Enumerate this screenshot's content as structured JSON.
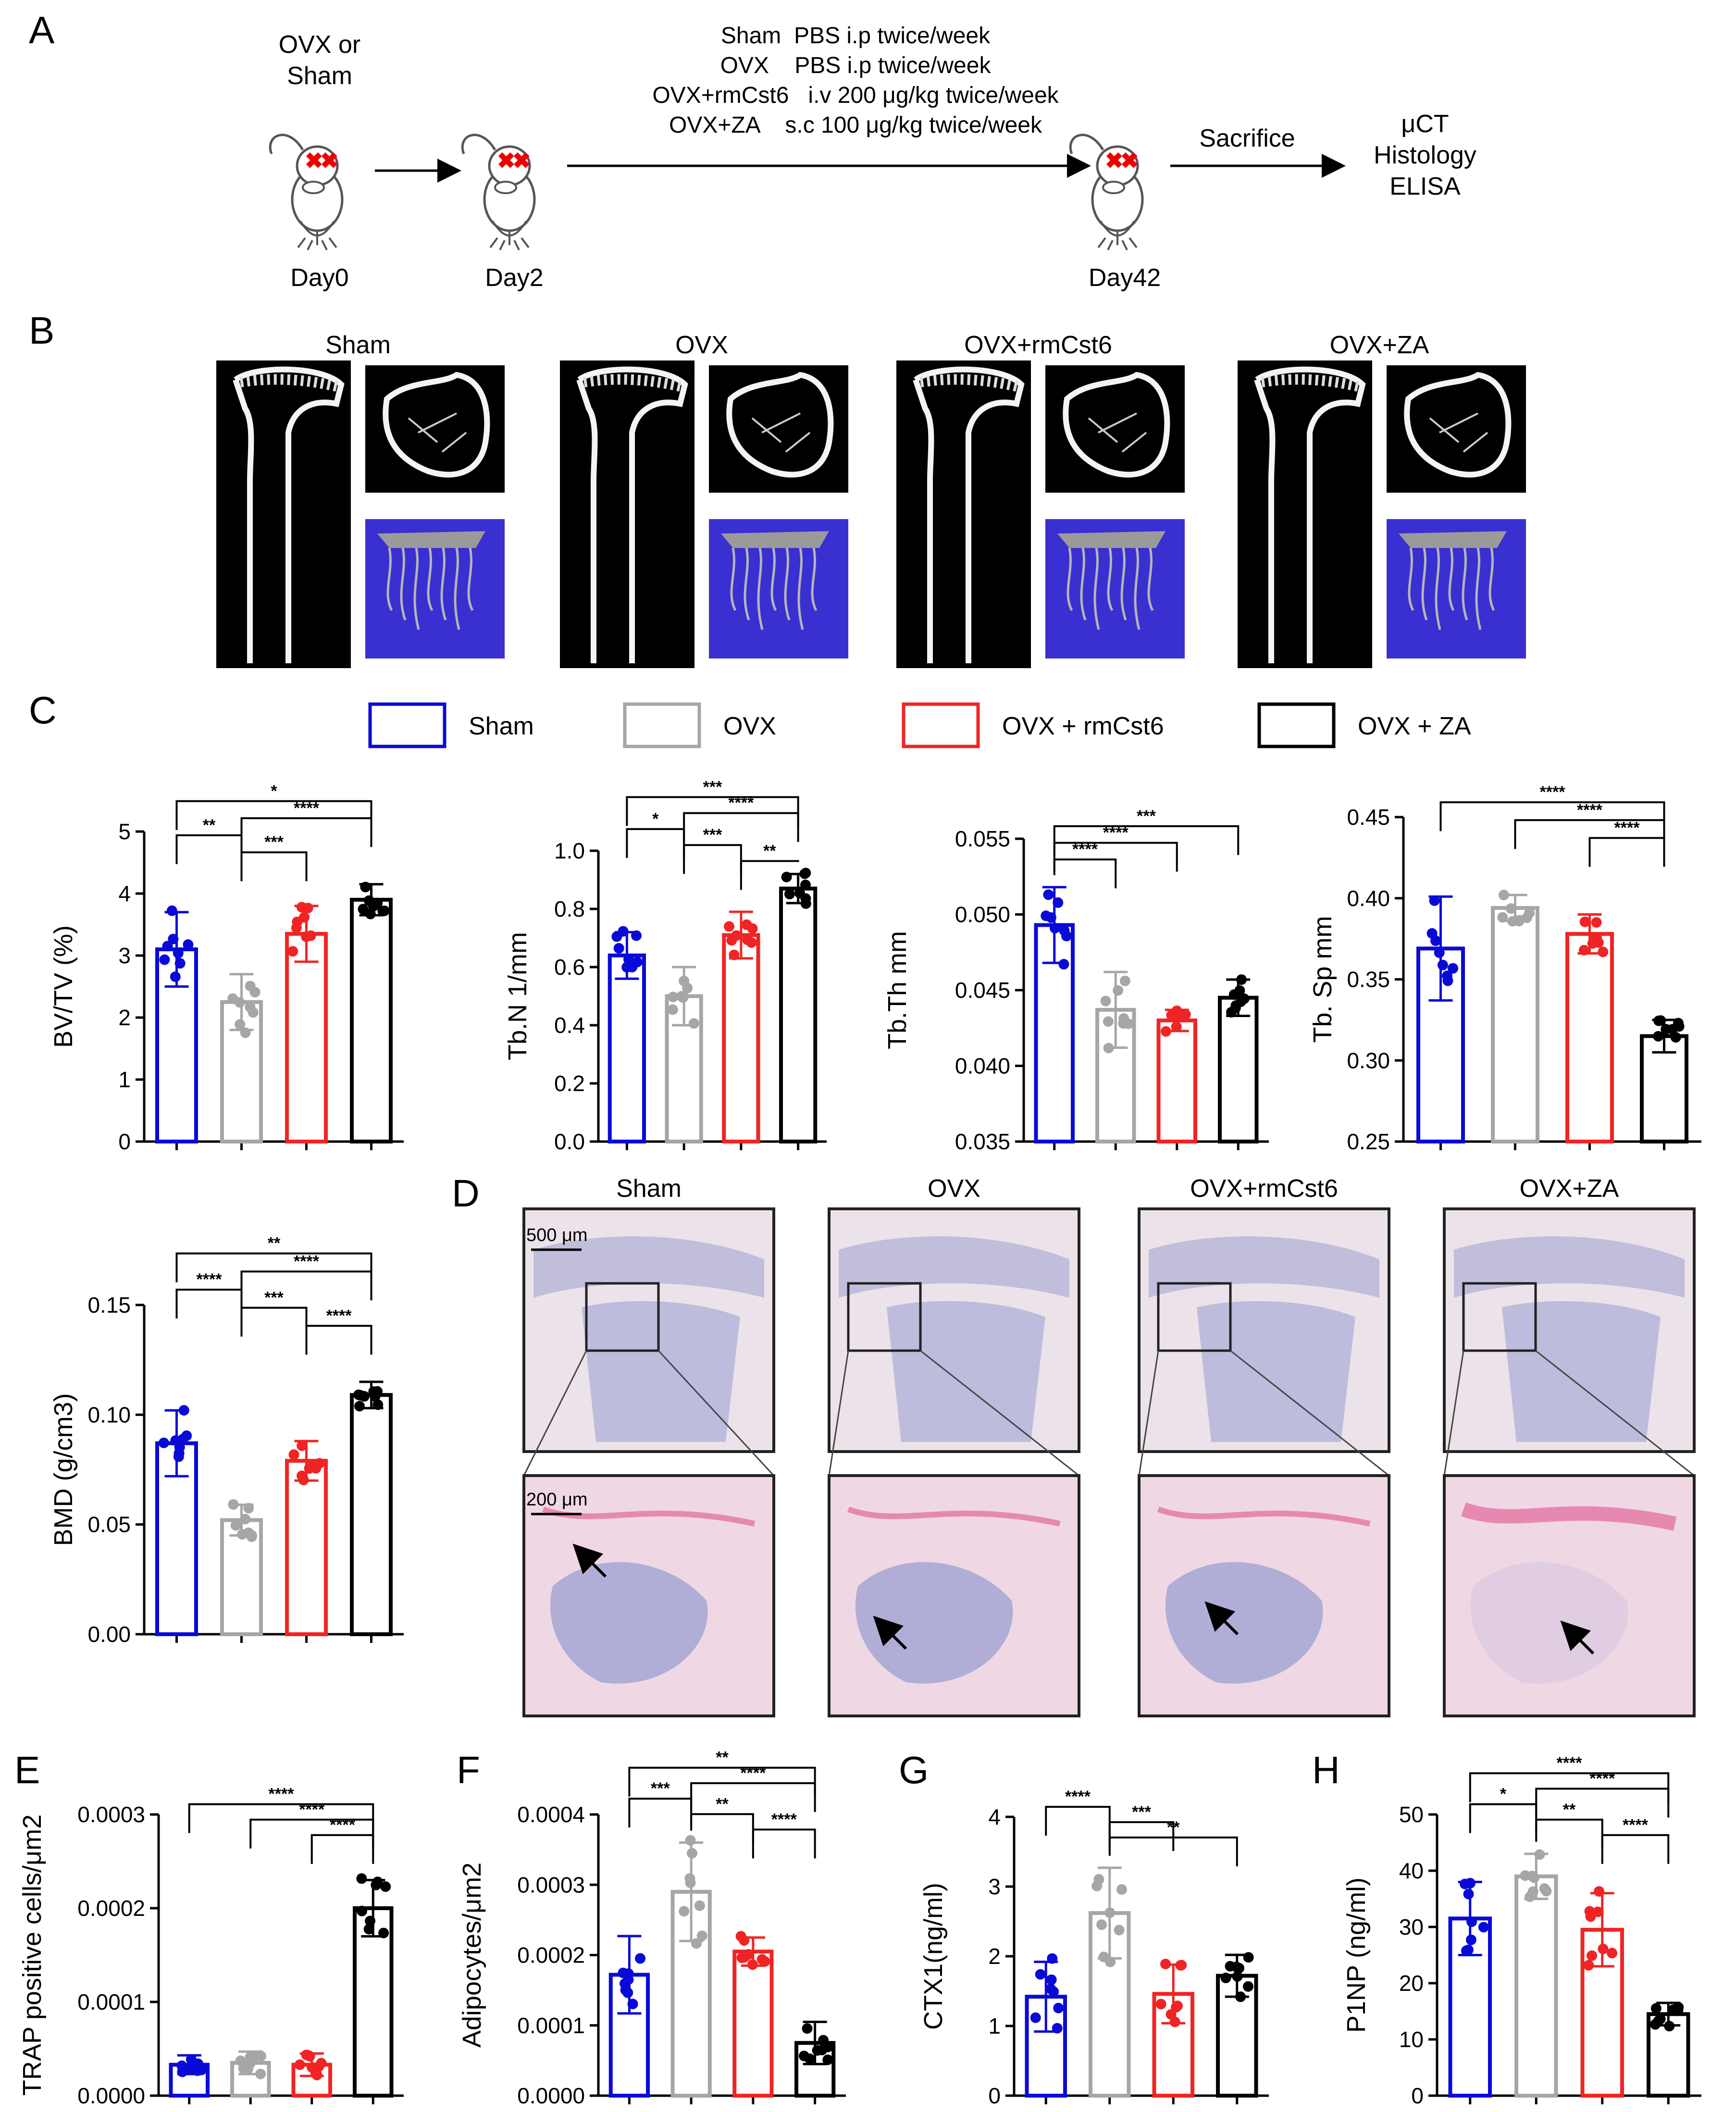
{
  "panel_labels": {
    "A": "A",
    "B": "B",
    "C": "C",
    "D": "D",
    "E": "E",
    "F": "F",
    "G": "G",
    "H": "H"
  },
  "timeline": {
    "start_label": [
      "OVX or",
      "Sham"
    ],
    "days": [
      "Day0",
      "Day2",
      "Day42"
    ],
    "treatments": [
      "Sham  PBS i.p twice/week",
      "OVX    PBS i.p twice/week",
      "OVX+rmCst6   i.v 200 μg/kg twice/week",
      "OVX+ZA    s.c 100 μg/kg twice/week"
    ],
    "sacrifice_label": "Sacrifice",
    "outcomes": [
      "μCT",
      "Histology",
      "ELISA"
    ]
  },
  "microct_titles": [
    "Sham",
    "OVX",
    "OVX+rmCst6",
    "OVX+ZA"
  ],
  "legend": [
    {
      "label": "Sham",
      "color": "#0a0ad8"
    },
    {
      "label": "OVX",
      "color": "#a6a6a6"
    },
    {
      "label": "OVX + rmCst6",
      "color": "#f02424"
    },
    {
      "label": "OVX + ZA",
      "color": "#000000"
    }
  ],
  "histology": {
    "titles": [
      "Sham",
      "OVX",
      "OVX+rmCst6",
      "OVX+ZA"
    ],
    "scale_top": "500 μm",
    "scale_bottom": "200 μm"
  },
  "chart_data": [
    {
      "id": "bvtv",
      "type": "bar",
      "ylabel": "BV/TV (%)",
      "ylim": [
        0,
        5
      ],
      "ticks": [
        "0",
        "1",
        "2",
        "3",
        "4",
        "5"
      ],
      "categories": [
        "Sham",
        "OVX",
        "OVX + rmCst6",
        "OVX + ZA"
      ],
      "values": [
        3.1,
        2.25,
        3.35,
        3.9
      ],
      "errors": [
        0.6,
        0.45,
        0.45,
        0.25
      ],
      "brackets": [
        {
          "a": 0,
          "b": 3,
          "label": "*"
        },
        {
          "a": 1,
          "b": 3,
          "label": "****"
        },
        {
          "a": 0,
          "b": 1,
          "label": "**"
        },
        {
          "a": 1,
          "b": 2,
          "label": "***"
        }
      ]
    },
    {
      "id": "tbn",
      "type": "bar",
      "ylabel": "Tb.N 1/mm",
      "ylim": [
        0,
        1
      ],
      "ticks": [
        "0.0",
        "0.2",
        "0.4",
        "0.6",
        "0.8",
        "1.0"
      ],
      "categories": [
        "Sham",
        "OVX",
        "OVX + rmCst6",
        "OVX + ZA"
      ],
      "values": [
        0.64,
        0.5,
        0.71,
        0.87
      ],
      "errors": [
        0.08,
        0.1,
        0.08,
        0.05
      ],
      "brackets": [
        {
          "a": 0,
          "b": 3,
          "label": "***"
        },
        {
          "a": 1,
          "b": 3,
          "label": "****"
        },
        {
          "a": 0,
          "b": 1,
          "label": "*"
        },
        {
          "a": 1,
          "b": 2,
          "label": "***"
        },
        {
          "a": 2,
          "b": 3,
          "label": "**"
        }
      ]
    },
    {
      "id": "tbth",
      "type": "bar",
      "ylabel": "Tb.Th mm",
      "ylim": [
        0.035,
        0.055
      ],
      "ticks": [
        "0.035",
        "0.040",
        "0.045",
        "0.050",
        "0.055"
      ],
      "categories": [
        "Sham",
        "OVX",
        "OVX + rmCst6",
        "OVX + ZA"
      ],
      "values": [
        0.0493,
        0.0437,
        0.043,
        0.0445
      ],
      "errors": [
        0.0025,
        0.0025,
        0.0007,
        0.0012
      ],
      "brackets": [
        {
          "a": 0,
          "b": 3,
          "label": "***"
        },
        {
          "a": 0,
          "b": 2,
          "label": "****"
        },
        {
          "a": 0,
          "b": 1,
          "label": "****"
        }
      ]
    },
    {
      "id": "tbsp",
      "type": "bar",
      "ylabel": "Tb. Sp mm",
      "ylim": [
        0.25,
        0.45
      ],
      "ticks": [
        "0.25",
        "0.30",
        "0.35",
        "0.40",
        "0.45"
      ],
      "categories": [
        "Sham",
        "OVX",
        "OVX + rmCst6",
        "OVX + ZA"
      ],
      "values": [
        0.369,
        0.394,
        0.378,
        0.315
      ],
      "errors": [
        0.032,
        0.008,
        0.012,
        0.01
      ],
      "brackets": [
        {
          "a": 0,
          "b": 3,
          "label": "****"
        },
        {
          "a": 1,
          "b": 3,
          "label": "****"
        },
        {
          "a": 2,
          "b": 3,
          "label": "****"
        }
      ]
    },
    {
      "id": "bmd",
      "type": "bar",
      "ylabel": "BMD (g/cm3)",
      "ylim": [
        0,
        0.15
      ],
      "ticks": [
        "0.00",
        "0.05",
        "0.10",
        "0.15"
      ],
      "categories": [
        "Sham",
        "OVX",
        "OVX + rmCst6",
        "OVX + ZA"
      ],
      "values": [
        0.087,
        0.052,
        0.079,
        0.109
      ],
      "errors": [
        0.015,
        0.007,
        0.009,
        0.006
      ],
      "brackets": [
        {
          "a": 0,
          "b": 3,
          "label": "**"
        },
        {
          "a": 1,
          "b": 3,
          "label": "****"
        },
        {
          "a": 0,
          "b": 1,
          "label": "****"
        },
        {
          "a": 1,
          "b": 2,
          "label": "***"
        },
        {
          "a": 2,
          "b": 3,
          "label": "****"
        }
      ]
    },
    {
      "id": "trap",
      "type": "bar",
      "ylabel": "TRAP positive cells/μm2",
      "ylim": [
        0,
        0.0003
      ],
      "ticks": [
        "0.0000",
        "0.0001",
        "0.0002",
        "0.0003"
      ],
      "categories": [
        "Sham",
        "OVX",
        "OVX + rmCst6",
        "OVX + ZA"
      ],
      "values": [
        3.3e-05,
        3.5e-05,
        3.3e-05,
        0.0002
      ],
      "errors": [
        1e-05,
        1.2e-05,
        1.2e-05,
        3e-05
      ],
      "brackets": [
        {
          "a": 0,
          "b": 3,
          "label": "****"
        },
        {
          "a": 1,
          "b": 3,
          "label": "****"
        },
        {
          "a": 2,
          "b": 3,
          "label": "****"
        }
      ]
    },
    {
      "id": "adipo",
      "type": "bar",
      "ylabel": "Adipocytes/μm2",
      "ylim": [
        0,
        0.0004
      ],
      "ticks": [
        "0.0000",
        "0.0001",
        "0.0002",
        "0.0003",
        "0.0004"
      ],
      "categories": [
        "Sham",
        "OVX",
        "OVX + rmCst6",
        "OVX + ZA"
      ],
      "values": [
        0.000172,
        0.00029,
        0.000205,
        7.5e-05
      ],
      "errors": [
        5.5e-05,
        7e-05,
        2e-05,
        3e-05
      ],
      "brackets": [
        {
          "a": 0,
          "b": 3,
          "label": "**"
        },
        {
          "a": 1,
          "b": 3,
          "label": "****"
        },
        {
          "a": 0,
          "b": 1,
          "label": "***"
        },
        {
          "a": 1,
          "b": 2,
          "label": "**"
        },
        {
          "a": 2,
          "b": 3,
          "label": "****"
        }
      ]
    },
    {
      "id": "ctx1",
      "type": "bar",
      "ylabel": "CTX1(ng/ml)",
      "ylim": [
        0,
        4
      ],
      "ticks": [
        "0",
        "1",
        "2",
        "3",
        "4"
      ],
      "categories": [
        "Sham",
        "OVX",
        "OVX + rmCst6",
        "OVX + ZA"
      ],
      "values": [
        1.42,
        2.62,
        1.46,
        1.72
      ],
      "errors": [
        0.5,
        0.65,
        0.42,
        0.3
      ],
      "brackets": [
        {
          "a": 0,
          "b": 1,
          "label": "****"
        },
        {
          "a": 1,
          "b": 2,
          "label": "***"
        },
        {
          "a": 1,
          "b": 3,
          "label": "**"
        }
      ]
    },
    {
      "id": "p1np",
      "type": "bar",
      "ylabel": "P1NP (ng/ml)",
      "ylim": [
        0,
        50
      ],
      "ticks": [
        "0",
        "10",
        "20",
        "30",
        "40",
        "50"
      ],
      "categories": [
        "Sham",
        "OVX",
        "OVX + rmCst6",
        "OVX + ZA"
      ],
      "values": [
        31.5,
        39,
        29.5,
        14.5
      ],
      "errors": [
        6.5,
        4,
        6.5,
        2
      ],
      "brackets": [
        {
          "a": 0,
          "b": 3,
          "label": "****"
        },
        {
          "a": 1,
          "b": 3,
          "label": "****"
        },
        {
          "a": 0,
          "b": 1,
          "label": "*"
        },
        {
          "a": 1,
          "b": 2,
          "label": "**"
        },
        {
          "a": 2,
          "b": 3,
          "label": "****"
        }
      ]
    }
  ]
}
